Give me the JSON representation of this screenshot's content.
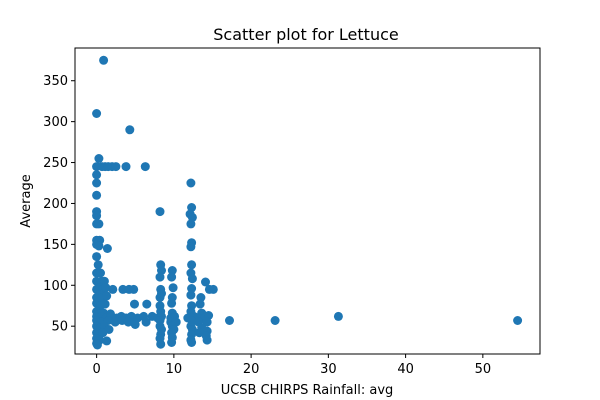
{
  "chart_data": {
    "type": "scatter",
    "title": "Scatter plot for Lettuce",
    "xlabel": "UCSB CHIRPS Rainfall: avg",
    "ylabel": "Average",
    "xlim": [
      -2.8,
      57.4
    ],
    "ylim": [
      16,
      390
    ],
    "xticks": [
      0,
      10,
      20,
      30,
      40,
      50
    ],
    "yticks": [
      50,
      100,
      150,
      200,
      250,
      300,
      350
    ],
    "grid": false,
    "legend": "none",
    "marker_color": "#1f77b4",
    "series": [
      {
        "points": [
          [
            0.9,
            375
          ],
          [
            0.0,
            310
          ],
          [
            4.3,
            290
          ],
          [
            0.3,
            255
          ],
          [
            0.0,
            245
          ],
          [
            0.7,
            245
          ],
          [
            1.1,
            245
          ],
          [
            1.5,
            245
          ],
          [
            2.0,
            245
          ],
          [
            2.5,
            245
          ],
          [
            3.8,
            245
          ],
          [
            6.3,
            245
          ],
          [
            0.0,
            235
          ],
          [
            0.0,
            225
          ],
          [
            12.2,
            225
          ],
          [
            0.0,
            210
          ],
          [
            12.3,
            195
          ],
          [
            0.0,
            190
          ],
          [
            8.2,
            190
          ],
          [
            0.0,
            185
          ],
          [
            12.1,
            187
          ],
          [
            12.4,
            183
          ],
          [
            0.0,
            175
          ],
          [
            0.3,
            175
          ],
          [
            12.2,
            175
          ],
          [
            0.0,
            155
          ],
          [
            0.4,
            155
          ],
          [
            0.0,
            150
          ],
          [
            0.3,
            148
          ],
          [
            1.4,
            145
          ],
          [
            12.3,
            152
          ],
          [
            12.2,
            147
          ],
          [
            0.0,
            135
          ],
          [
            0.2,
            125
          ],
          [
            0.0,
            115
          ],
          [
            0.5,
            115
          ],
          [
            0.0,
            105
          ],
          [
            0.6,
            105
          ],
          [
            1.0,
            105
          ],
          [
            8.3,
            125
          ],
          [
            8.4,
            118
          ],
          [
            8.2,
            110
          ],
          [
            9.8,
            118
          ],
          [
            9.7,
            110
          ],
          [
            12.3,
            125
          ],
          [
            12.2,
            115
          ],
          [
            12.4,
            108
          ],
          [
            14.1,
            104
          ],
          [
            0.0,
            95
          ],
          [
            0.4,
            97
          ],
          [
            0.8,
            95
          ],
          [
            1.2,
            97
          ],
          [
            2.1,
            95
          ],
          [
            3.4,
            95
          ],
          [
            4.2,
            95
          ],
          [
            4.8,
            95
          ],
          [
            8.3,
            95
          ],
          [
            9.9,
            97
          ],
          [
            12.3,
            96
          ],
          [
            14.6,
            95
          ],
          [
            15.1,
            95
          ],
          [
            0.0,
            85
          ],
          [
            0.3,
            88
          ],
          [
            0.7,
            85
          ],
          [
            1.3,
            87
          ],
          [
            8.2,
            85
          ],
          [
            8.4,
            90
          ],
          [
            9.8,
            85
          ],
          [
            12.2,
            88
          ],
          [
            13.5,
            85
          ],
          [
            0.0,
            78
          ],
          [
            0.5,
            75
          ],
          [
            1.1,
            77
          ],
          [
            4.9,
            77
          ],
          [
            6.5,
            77
          ],
          [
            8.2,
            75
          ],
          [
            9.7,
            78
          ],
          [
            12.3,
            75
          ],
          [
            13.4,
            77
          ],
          [
            0.0,
            68
          ],
          [
            0.4,
            65
          ],
          [
            0.9,
            66
          ],
          [
            1.8,
            65
          ],
          [
            8.3,
            68
          ],
          [
            9.8,
            66
          ],
          [
            12.2,
            68
          ],
          [
            13.6,
            66
          ],
          [
            0.0,
            62
          ],
          [
            0.3,
            60
          ],
          [
            0.7,
            62
          ],
          [
            1.2,
            60
          ],
          [
            1.8,
            62
          ],
          [
            2.6,
            60
          ],
          [
            3.2,
            62
          ],
          [
            3.8,
            60
          ],
          [
            4.5,
            62
          ],
          [
            5.3,
            60
          ],
          [
            6.1,
            62
          ],
          [
            7.2,
            62
          ],
          [
            7.9,
            60
          ],
          [
            8.4,
            62
          ],
          [
            9.6,
            60
          ],
          [
            10.1,
            62
          ],
          [
            11.8,
            60
          ],
          [
            12.6,
            62
          ],
          [
            13.1,
            60
          ],
          [
            14.0,
            60
          ],
          [
            14.5,
            63
          ],
          [
            31.3,
            62
          ],
          [
            0.0,
            57
          ],
          [
            0.6,
            55
          ],
          [
            1.5,
            57
          ],
          [
            2.4,
            55
          ],
          [
            3.3,
            57
          ],
          [
            4.1,
            55
          ],
          [
            4.9,
            54
          ],
          [
            6.4,
            55
          ],
          [
            8.2,
            57
          ],
          [
            9.6,
            55
          ],
          [
            10.3,
            55
          ],
          [
            12.3,
            57
          ],
          [
            13.2,
            55
          ],
          [
            14.3,
            55
          ],
          [
            17.2,
            57
          ],
          [
            23.1,
            57
          ],
          [
            54.5,
            57
          ],
          [
            0.0,
            50
          ],
          [
            0.5,
            48
          ],
          [
            1.0,
            50
          ],
          [
            1.6,
            46
          ],
          [
            5.0,
            52
          ],
          [
            8.2,
            50
          ],
          [
            8.4,
            46
          ],
          [
            9.8,
            50
          ],
          [
            10.0,
            46
          ],
          [
            12.2,
            50
          ],
          [
            12.4,
            46
          ],
          [
            13.6,
            48
          ],
          [
            14.3,
            44
          ],
          [
            0.0,
            42
          ],
          [
            0.3,
            40
          ],
          [
            0.8,
            42
          ],
          [
            8.3,
            40
          ],
          [
            9.7,
            42
          ],
          [
            12.3,
            40
          ],
          [
            13.3,
            42
          ],
          [
            14.2,
            38
          ],
          [
            0.0,
            35
          ],
          [
            0.4,
            33
          ],
          [
            1.3,
            32
          ],
          [
            8.2,
            35
          ],
          [
            9.8,
            36
          ],
          [
            12.2,
            33
          ],
          [
            14.3,
            33
          ],
          [
            0.0,
            29
          ],
          [
            0.1,
            27
          ],
          [
            8.3,
            28
          ],
          [
            9.7,
            30
          ],
          [
            12.3,
            30
          ]
        ]
      }
    ]
  }
}
